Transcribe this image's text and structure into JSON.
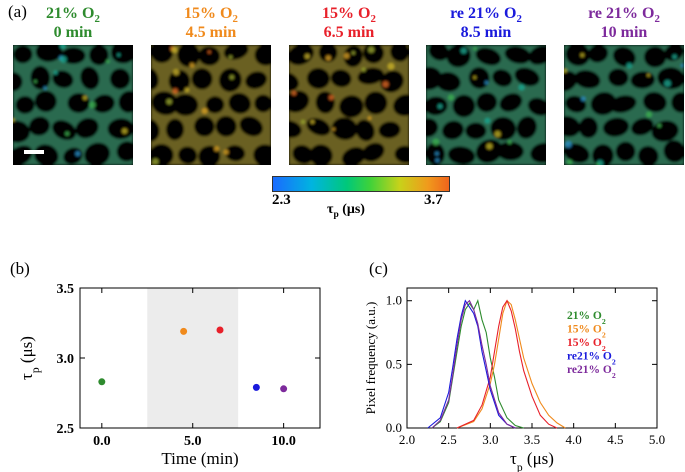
{
  "panel_a": {
    "label": "(a)",
    "frames": [
      {
        "condition": "21% O",
        "sub": "2",
        "time": "0 min",
        "color": "#2e8b2e"
      },
      {
        "condition": "15% O",
        "sub": "2",
        "time": "4.5 min",
        "color": "#f08a1c"
      },
      {
        "condition": "15% O",
        "sub": "2",
        "time": "6.5 min",
        "color": "#e8202a"
      },
      {
        "condition": "re 21% O",
        "sub": "2",
        "time": "8.5 min",
        "color": "#1a1adc"
      },
      {
        "condition": "re 21% O",
        "sub": "2",
        "time": "10 min",
        "color": "#7d2a9c"
      }
    ],
    "colorbar": {
      "min": "2.3",
      "max": "3.7",
      "label": "τ",
      "label_sub": "p",
      "label_unit": " (μs)"
    }
  },
  "chart_data": [
    {
      "panel_label": "(b)",
      "type": "scatter",
      "xlabel": "Time (min)",
      "ylabel": "τ",
      "ylabel_sub": "p",
      "ylabel_unit": " (μs)",
      "xlim": [
        -1.2,
        12
      ],
      "ylim": [
        2.5,
        3.5
      ],
      "xticks": [
        "0.0",
        "5.0",
        "10.0"
      ],
      "xtick_values": [
        0,
        5,
        10
      ],
      "yticks": [
        "2.5",
        "3.0",
        "3.5"
      ],
      "ytick_values": [
        2.5,
        3.0,
        3.5
      ],
      "shaded_region": [
        2.5,
        7.5
      ],
      "points": [
        {
          "x": 0,
          "y": 2.83,
          "color": "#2e8b2e"
        },
        {
          "x": 4.5,
          "y": 3.19,
          "color": "#f08a1c"
        },
        {
          "x": 6.5,
          "y": 3.2,
          "color": "#e8202a"
        },
        {
          "x": 8.5,
          "y": 2.79,
          "color": "#1a1adc"
        },
        {
          "x": 10,
          "y": 2.78,
          "color": "#7d2a9c"
        }
      ]
    },
    {
      "panel_label": "(c)",
      "type": "line",
      "xlabel": "τ",
      "xlabel_sub": "p",
      "xlabel_unit": " (μs)",
      "ylabel": "Pixel frequency (a.u.)",
      "xlim": [
        2.0,
        5.0
      ],
      "ylim": [
        0,
        1.1
      ],
      "xticks": [
        "2.0",
        "2.5",
        "3.0",
        "3.5",
        "4.0",
        "4.5",
        "5.0"
      ],
      "xtick_values": [
        2.0,
        2.5,
        3.0,
        3.5,
        4.0,
        4.5,
        5.0
      ],
      "yticks": [
        "0.0",
        "0.5",
        "1.0"
      ],
      "ytick_values": [
        0,
        0.5,
        1.0
      ],
      "series": [
        {
          "name": "21% O",
          "sub": "2",
          "color": "#2e8b2e",
          "x": [
            2.3,
            2.4,
            2.5,
            2.55,
            2.6,
            2.65,
            2.7,
            2.75,
            2.8,
            2.85,
            2.9,
            2.95,
            3.0,
            3.05,
            3.1,
            3.2,
            3.3,
            3.4
          ],
          "y": [
            0,
            0.05,
            0.2,
            0.4,
            0.6,
            0.8,
            0.93,
            0.98,
            0.93,
            1.0,
            0.85,
            0.75,
            0.55,
            0.4,
            0.22,
            0.08,
            0.02,
            0
          ]
        },
        {
          "name": "15% O",
          "sub": "2",
          "color": "#f08a1c",
          "x": [
            2.6,
            2.8,
            2.9,
            3.0,
            3.05,
            3.1,
            3.15,
            3.2,
            3.25,
            3.3,
            3.35,
            3.4,
            3.5,
            3.6,
            3.7,
            3.8,
            3.9
          ],
          "y": [
            0,
            0.05,
            0.15,
            0.35,
            0.5,
            0.7,
            0.9,
            1.0,
            0.97,
            0.85,
            0.7,
            0.55,
            0.35,
            0.2,
            0.1,
            0.04,
            0
          ]
        },
        {
          "name": "15% O",
          "sub": "2",
          "color": "#e8202a",
          "x": [
            2.6,
            2.8,
            2.9,
            3.0,
            3.05,
            3.1,
            3.15,
            3.2,
            3.25,
            3.3,
            3.35,
            3.4,
            3.5,
            3.6,
            3.7,
            3.8
          ],
          "y": [
            0,
            0.06,
            0.18,
            0.4,
            0.6,
            0.8,
            0.95,
            1.0,
            0.92,
            0.78,
            0.6,
            0.45,
            0.25,
            0.1,
            0.03,
            0
          ]
        },
        {
          "name": "re21% O",
          "sub": "2",
          "color": "#1a1adc",
          "x": [
            2.25,
            2.4,
            2.5,
            2.55,
            2.6,
            2.65,
            2.7,
            2.75,
            2.8,
            2.85,
            2.9,
            2.95,
            3.0,
            3.1,
            3.2,
            3.3
          ],
          "y": [
            0,
            0.08,
            0.28,
            0.48,
            0.7,
            0.88,
            1.0,
            0.95,
            0.9,
            0.8,
            0.6,
            0.45,
            0.3,
            0.1,
            0.03,
            0
          ]
        },
        {
          "name": "re21% O",
          "sub": "2",
          "color": "#7d2a9c",
          "x": [
            2.3,
            2.4,
            2.5,
            2.55,
            2.6,
            2.65,
            2.7,
            2.75,
            2.8,
            2.85,
            2.9,
            2.95,
            3.0,
            3.1,
            3.2,
            3.3
          ],
          "y": [
            0,
            0.06,
            0.22,
            0.42,
            0.65,
            0.85,
            0.97,
            1.0,
            0.93,
            0.82,
            0.65,
            0.5,
            0.33,
            0.12,
            0.03,
            0
          ]
        }
      ]
    }
  ]
}
